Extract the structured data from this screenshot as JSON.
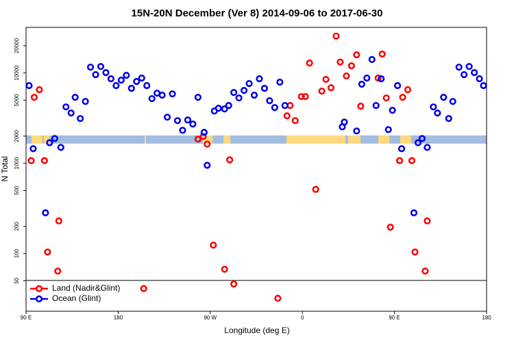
{
  "chart_data": {
    "type": "scatter",
    "title": "15N-20N December (Ver 8)   2014-09-06 to 2017-06-30",
    "x_label": "Longitude (deg E)",
    "y_label": "N Total",
    "xlim": [
      90,
      540
    ],
    "ylim": [
      23,
      32000
    ],
    "log_y": true,
    "legend": "lower left",
    "xticks": [
      {
        "value": 90,
        "label": "90 E"
      },
      180,
      {
        "value": 270,
        "label": "90 W"
      },
      {
        "value": 360,
        "label": "0"
      },
      {
        "value": 450,
        "label": "90 E"
      },
      {
        "value": 540,
        "label": "180"
      }
    ],
    "yticks": [
      50,
      100,
      200,
      500,
      1000,
      2000,
      5000,
      10000,
      20000
    ],
    "series": [
      {
        "name": "Land (Nadir&Glint)",
        "color": "#ff0000",
        "x": [
          95,
          98,
          103,
          108,
          111,
          121,
          122,
          205,
          258,
          263,
          267,
          273,
          284,
          289,
          293,
          336,
          345,
          348,
          353,
          359,
          363,
          367,
          373,
          379,
          383,
          388,
          393,
          397,
          403,
          408,
          413,
          417,
          434,
          438,
          442,
          446,
          455,
          458,
          463,
          467,
          470,
          480,
          482
        ],
        "values": [
          1070,
          5380,
          6530,
          1070,
          104,
          64,
          230,
          41,
          1850,
          1980,
          1630,
          124,
          67,
          1090,
          46,
          32,
          3350,
          4360,
          2970,
          5480,
          5480,
          12900,
          514,
          6300,
          8490,
          6870,
          25600,
          13200,
          9270,
          12000,
          15900,
          4290,
          8790,
          16200,
          5290,
          196,
          1070,
          5380,
          6530,
          1070,
          104,
          64,
          230
        ]
      },
      {
        "name": "Ocean (Glint)",
        "color": "#0000ee",
        "x": [
          93,
          97,
          109,
          113,
          118,
          124,
          129,
          134,
          138,
          143,
          148,
          153,
          158,
          163,
          168,
          173,
          178,
          183,
          188,
          193,
          198,
          203,
          208,
          213,
          218,
          223,
          228,
          233,
          238,
          243,
          248,
          253,
          258,
          264,
          267,
          274,
          278,
          284,
          288,
          293,
          298,
          303,
          308,
          313,
          318,
          323,
          328,
          333,
          338,
          343,
          399,
          401,
          413,
          418,
          423,
          428,
          432,
          437,
          444,
          448,
          453,
          457,
          469,
          473,
          477,
          482,
          488,
          492,
          498,
          503,
          507,
          513,
          518,
          523,
          528,
          533,
          537
        ],
        "values": [
          7250,
          1450,
          283,
          1690,
          1880,
          1500,
          4210,
          3600,
          5380,
          3130,
          4840,
          11600,
          9590,
          11800,
          10100,
          8630,
          7250,
          8340,
          9420,
          6760,
          8050,
          8790,
          7250,
          5200,
          5980,
          5680,
          3240,
          5870,
          2970,
          2320,
          3020,
          2720,
          5380,
          2200,
          950,
          3790,
          4070,
          4000,
          4360,
          6080,
          5290,
          6410,
          7640,
          5680,
          8630,
          6760,
          4930,
          4140,
          7910,
          4360,
          2530,
          2860,
          2280,
          7510,
          8790,
          14100,
          4360,
          8630,
          2360,
          3860,
          7250,
          1450,
          283,
          1690,
          1880,
          1500,
          4210,
          3600,
          5380,
          3130,
          4840,
          11600,
          9590,
          11800,
          10100,
          8630,
          7250
        ]
      }
    ]
  }
}
